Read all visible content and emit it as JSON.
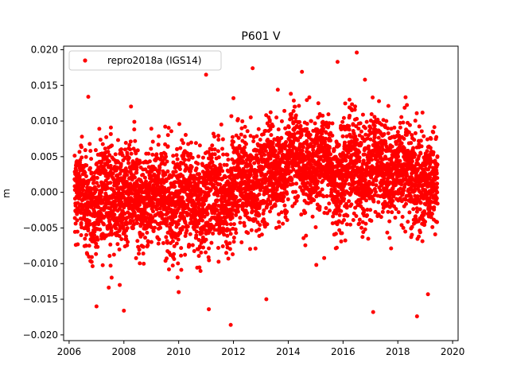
{
  "chart_data": {
    "type": "scatter",
    "title": "P601 V",
    "xlabel": "",
    "ylabel": "m",
    "xlim": [
      2005.8,
      2020.2
    ],
    "ylim": [
      -0.0208,
      0.0205
    ],
    "grid": false,
    "legend_position": "top-left",
    "x_ticks": [
      2006,
      2008,
      2010,
      2012,
      2014,
      2016,
      2018,
      2020
    ],
    "y_ticks": [
      -0.02,
      -0.015,
      -0.01,
      -0.005,
      0.0,
      0.005,
      0.01,
      0.015,
      0.02
    ],
    "y_tick_labels": [
      "−0.020",
      "−0.015",
      "−0.010",
      "−0.005",
      "0.000",
      "0.005",
      "0.010",
      "0.015",
      "0.020"
    ],
    "series": [
      {
        "name": "repro2018a (IGS14)",
        "color": "#ff0000",
        "marker": "circle",
        "x_start": 2006.2,
        "x_end": 2019.45,
        "approx_points": 4800,
        "trend": [
          [
            2006.2,
            -0.001
          ],
          [
            2007.0,
            -0.0012
          ],
          [
            2008.0,
            -0.0008
          ],
          [
            2009.0,
            -0.0005
          ],
          [
            2010.0,
            -0.0015
          ],
          [
            2011.0,
            -0.0005
          ],
          [
            2012.0,
            0.0005
          ],
          [
            2013.0,
            0.002
          ],
          [
            2014.0,
            0.0045
          ],
          [
            2015.0,
            0.004
          ],
          [
            2016.0,
            0.003
          ],
          [
            2017.0,
            0.0035
          ],
          [
            2018.0,
            0.0035
          ],
          [
            2019.0,
            0.0015
          ],
          [
            2019.45,
            0.001
          ]
        ],
        "noise_std": 0.0035,
        "outliers": [
          [
            2006.7,
            0.0134
          ],
          [
            2011.0,
            0.0165
          ],
          [
            2012.0,
            0.0132
          ],
          [
            2012.7,
            0.0174
          ],
          [
            2014.5,
            0.0169
          ],
          [
            2015.8,
            0.0183
          ],
          [
            2016.5,
            0.0196
          ],
          [
            2016.8,
            0.0158
          ],
          [
            2011.9,
            -0.0186
          ],
          [
            2011.1,
            -0.0164
          ],
          [
            2013.2,
            -0.015
          ],
          [
            2017.1,
            -0.0168
          ],
          [
            2018.7,
            -0.0174
          ],
          [
            2007.0,
            -0.016
          ],
          [
            2008.0,
            -0.0166
          ],
          [
            2010.0,
            -0.014
          ],
          [
            2019.1,
            -0.0143
          ]
        ]
      }
    ]
  }
}
